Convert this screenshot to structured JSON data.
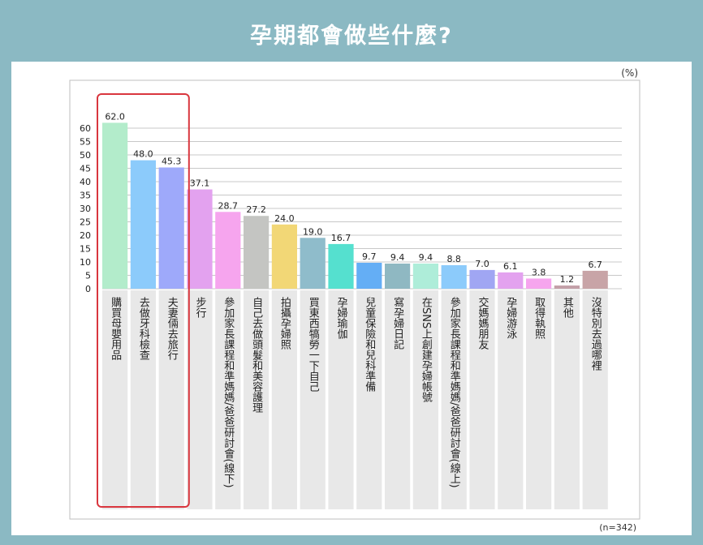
{
  "page": {
    "title": "孕期都會做些什麼?",
    "unit": "(%)",
    "sample": "(n=342)"
  },
  "colors": {
    "background": "#8bb9c3",
    "highlight_box": "#d9363e",
    "label_column": "#e8e8e8",
    "gridline": "#c8c8c8"
  },
  "chart_data": {
    "type": "bar",
    "title": "孕期都會做些什麼?",
    "ylabel": "(%)",
    "ylim": [
      0,
      60
    ],
    "yticks": [
      0,
      5,
      10,
      15,
      20,
      25,
      30,
      35,
      40,
      45,
      50,
      55,
      60
    ],
    "grid": true,
    "note": "(n=342)",
    "categories": [
      "購買母嬰用品",
      "去做牙科檢查",
      "夫妻倆去旅行",
      "步行",
      "參加家長課程和準媽媽/爸爸研討會(線下)",
      "自己去做頭髮和美容護理",
      "拍攝孕婦照",
      "買東西犒勞一下自己",
      "孕婦瑜伽",
      "兒童保險和兒科準備",
      "寫孕婦日記",
      "在SNS上創建孕婦帳號",
      "參加家長課程和準媽媽/爸爸研討會(線上)",
      "交媽媽朋友",
      "孕婦游泳",
      "取得執照",
      "其他",
      "沒特別去過哪裡"
    ],
    "values": [
      62.0,
      48.0,
      45.3,
      37.1,
      28.7,
      27.2,
      24.0,
      19.0,
      16.7,
      9.7,
      9.4,
      9.4,
      8.8,
      7.0,
      6.1,
      3.8,
      1.2,
      6.7
    ],
    "value_labels": [
      "62.0",
      "48.0",
      "45.3",
      "37.1",
      "28.7",
      "27.2",
      "24.0",
      "19.0",
      "16.7",
      "9.7",
      "9.4",
      "9.4",
      "8.8",
      "7.0",
      "6.1",
      "3.8",
      "1.2",
      "6.7"
    ],
    "bar_colors": [
      "#b3eccb",
      "#8ccbfb",
      "#9ea9fa",
      "#e3a2ef",
      "#f6a5ee",
      "#c4c5c2",
      "#f2d776",
      "#8fbccb",
      "#55e0cf",
      "#64aef5",
      "#8fb8c2",
      "#aeedd9",
      "#8ccbfb",
      "#a0a6f3",
      "#e3a2ef",
      "#f6a5ee",
      "#c3a0a8",
      "#c8a4a7"
    ],
    "highlighted": [
      "購買母嬰用品",
      "去做牙科檢查",
      "夫妻倆去旅行"
    ]
  }
}
